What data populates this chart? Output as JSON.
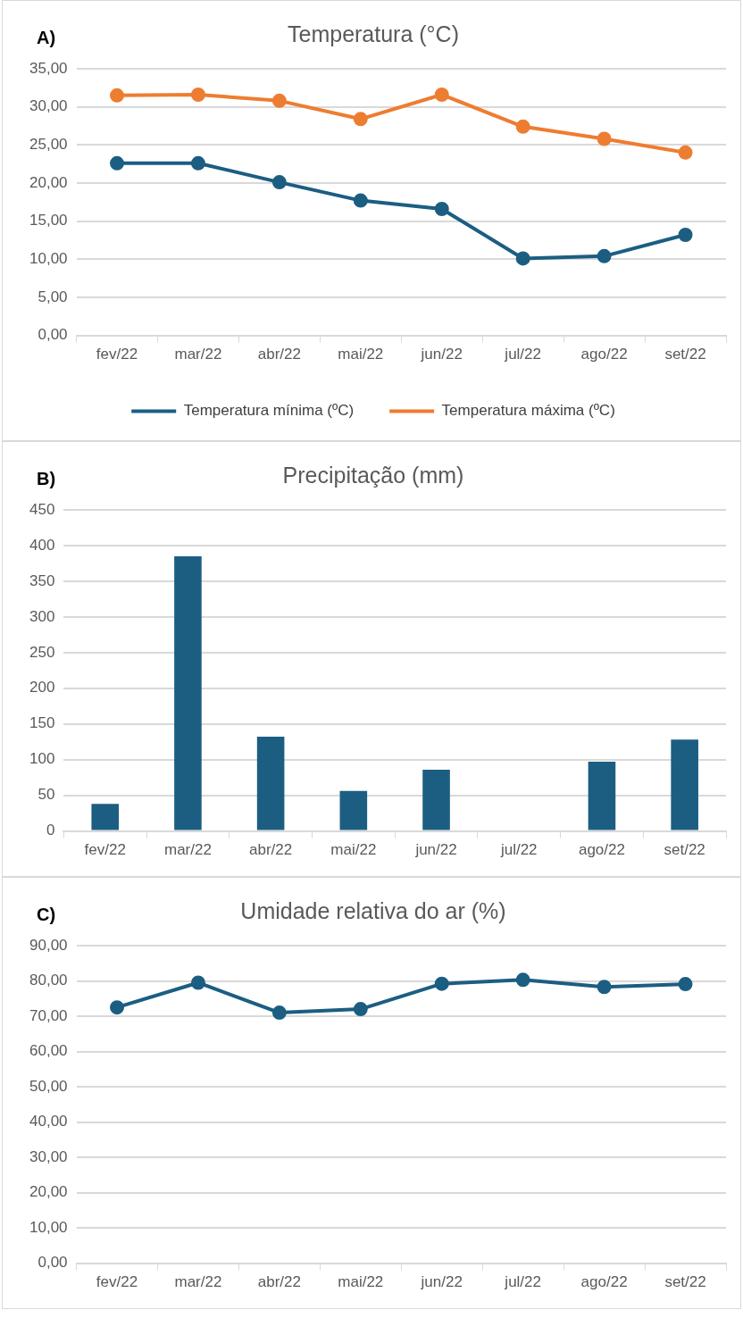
{
  "chart_data": [
    {
      "type": "line",
      "title": "Temperatura (°C)",
      "annotations": [
        "A)"
      ],
      "categories": [
        "fev/22",
        "mar/22",
        "abr/22",
        "mai/22",
        "jun/22",
        "jul/22",
        "ago/22",
        "set/22"
      ],
      "series": [
        {
          "name": "Temperatura mínima (ºC)",
          "color": "#1b5e82",
          "values": [
            22.6,
            22.6,
            20.1,
            17.7,
            16.6,
            10.1,
            10.4,
            13.2
          ]
        },
        {
          "name": "Temperatura máxima (ºC)",
          "color": "#ed7d31",
          "values": [
            31.5,
            31.6,
            30.8,
            28.4,
            31.6,
            27.4,
            25.8,
            24.0
          ]
        }
      ],
      "ylim": [
        0,
        35
      ],
      "yticks": [
        {
          "value": 0,
          "label": "0,00"
        },
        {
          "value": 5,
          "label": "5,00"
        },
        {
          "value": 10,
          "label": "10,00"
        },
        {
          "value": 15,
          "label": "15,00"
        },
        {
          "value": 20,
          "label": "20,00"
        },
        {
          "value": 25,
          "label": "25,00"
        },
        {
          "value": 30,
          "label": "30,00"
        },
        {
          "value": 35,
          "label": "35,00"
        }
      ],
      "grid": "y",
      "legend": "bottom",
      "marker": "circle",
      "line_style": "solid"
    },
    {
      "type": "bar",
      "title": "Precipitação (mm)",
      "annotations": [
        "B)"
      ],
      "categories": [
        "fev/22",
        "mar/22",
        "abr/22",
        "mai/22",
        "jun/22",
        "jul/22",
        "ago/22",
        "set/22"
      ],
      "values": [
        38,
        385,
        132,
        56,
        86,
        0,
        97,
        128
      ],
      "color": "#1b5e82",
      "ylim": [
        0,
        450
      ],
      "yticks": [
        0,
        50,
        100,
        150,
        200,
        250,
        300,
        350,
        400,
        450
      ],
      "grid": "y"
    },
    {
      "type": "line",
      "title": "Umidade relativa do ar (%)",
      "annotations": [
        "C)"
      ],
      "categories": [
        "fev/22",
        "mar/22",
        "abr/22",
        "mai/22",
        "jun/22",
        "jul/22",
        "ago/22",
        "set/22"
      ],
      "values": [
        72.5,
        79.5,
        71.0,
        72.0,
        79.2,
        80.3,
        78.3,
        79.1
      ],
      "color": "#1b5e82",
      "ylim": [
        0,
        90
      ],
      "yticks": [
        {
          "value": 0,
          "label": "0,00"
        },
        {
          "value": 10,
          "label": "10,00"
        },
        {
          "value": 20,
          "label": "20,00"
        },
        {
          "value": 30,
          "label": "30,00"
        },
        {
          "value": 40,
          "label": "40,00"
        },
        {
          "value": 50,
          "label": "50,00"
        },
        {
          "value": 60,
          "label": "60,00"
        },
        {
          "value": 70,
          "label": "70,00"
        },
        {
          "value": 80,
          "label": "80,00"
        },
        {
          "value": 90,
          "label": "90,00"
        }
      ],
      "grid": "y",
      "marker": "circle",
      "line_style": "solid"
    }
  ]
}
